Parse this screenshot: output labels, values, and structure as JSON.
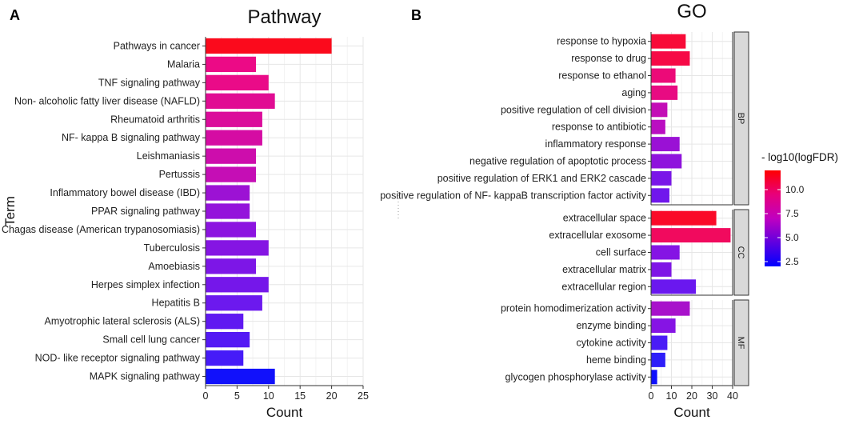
{
  "chart_data": [
    {
      "type": "bar",
      "orientation": "horizontal",
      "panel_label": "A",
      "title": "Pathway",
      "xlabel": "Count",
      "ylabel": "Term",
      "xlim": [
        0,
        25
      ],
      "xticks": [
        0,
        5,
        10,
        15,
        20,
        25
      ],
      "grid": true,
      "categories": [
        "Pathways in cancer",
        "Malaria",
        "TNF signaling pathway",
        "Non- alcoholic fatty liver disease (NAFLD)",
        "Rheumatoid arthritis",
        "NF- kappa B signaling pathway",
        "Leishmaniasis",
        "Pertussis",
        "Inflammatory bowel disease (IBD)",
        "PPAR signaling pathway",
        "Chagas disease (American trypanosomiasis)",
        "Tuberculosis",
        "Amoebiasis",
        "Herpes simplex infection",
        "Hepatitis B",
        "Amyotrophic lateral sclerosis (ALS)",
        "Small cell lung cancer",
        "NOD- like receptor signaling pathway",
        "MAPK signaling pathway"
      ],
      "values": [
        20,
        8,
        10,
        11,
        9,
        9,
        8,
        8,
        7,
        7,
        8,
        10,
        8,
        10,
        9,
        6,
        7,
        6,
        11
      ],
      "colors": [
        "#fb0a1c",
        "#ec0a86",
        "#ea0b88",
        "#e10c93",
        "#db0c9b",
        "#d50ca3",
        "#cd0dac",
        "#c50eb5",
        "#9c12d4",
        "#9413db",
        "#8c14e0",
        "#8515e3",
        "#7d16e7",
        "#7517ea",
        "#6c19ee",
        "#6019f1",
        "#541af4",
        "#461bf8",
        "#1111fb"
      ]
    },
    {
      "type": "bar",
      "orientation": "horizontal",
      "panel_label": "B",
      "title": "GO",
      "xlabel": "Count",
      "xlim": [
        0,
        40
      ],
      "xticks": [
        0,
        10,
        20,
        30,
        40
      ],
      "grid": true,
      "facets": [
        {
          "name": "BP",
          "categories": [
            "response to hypoxia",
            "response to drug",
            "response to ethanol",
            "aging",
            "positive regulation of cell division",
            "response to antibiotic",
            "inflammatory response",
            "negative regulation of apoptotic process",
            "positive regulation of ERK1 and ERK2 cascade",
            "positive regulation of NF- kappaB transcription factor activity"
          ],
          "values": [
            17,
            19,
            12,
            13,
            8,
            7,
            14,
            15,
            10,
            9
          ],
          "colors": [
            "#f80b38",
            "#f60a46",
            "#ec0a78",
            "#e80b82",
            "#c30eb6",
            "#ba0ec1",
            "#9a11d5",
            "#8f13dd",
            "#7a16e8",
            "#7017ec"
          ]
        },
        {
          "name": "CC",
          "categories": [
            "extracellular space",
            "extracellular exosome",
            "cell surface",
            "extracellular matrix",
            "extracellular region"
          ],
          "values": [
            32,
            39,
            14,
            10,
            22
          ],
          "colors": [
            "#fa0a28",
            "#f10a5e",
            "#8514e4",
            "#7f16e6",
            "#6a18ef"
          ]
        },
        {
          "name": "MF",
          "categories": [
            "protein homodimerization activity",
            "enzyme binding",
            "cytokine activity",
            "heme binding",
            "glycogen phosphorylase activity"
          ],
          "values": [
            19,
            12,
            8,
            7,
            3
          ],
          "colors": [
            "#a812cb",
            "#8614e4",
            "#4a1cf6",
            "#2e1ef9",
            "#0f10fc"
          ]
        }
      ],
      "legend": {
        "title": "- log10(logFDR)",
        "placement": "right",
        "range": [
          2.0,
          12.0
        ],
        "ticks": [
          2.5,
          5.0,
          7.5,
          10.0
        ],
        "tick_labels": [
          "2.5",
          "5.0",
          "7.5",
          "10.0"
        ],
        "low_color": "#0000ff",
        "high_color": "#ff0000"
      }
    }
  ]
}
